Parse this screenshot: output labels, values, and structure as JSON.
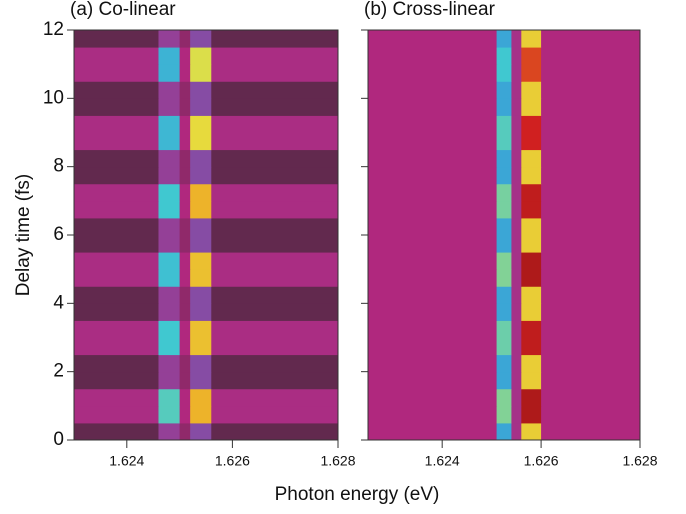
{
  "chart_data": [
    {
      "type": "heatmap",
      "title": "(a) Co-linear",
      "ylabel": "Delay time (fs)",
      "xlabel": "Photon energy (eV)",
      "xlim": [
        1.623,
        1.628
      ],
      "ylim": [
        0,
        12
      ],
      "xticks": [
        {
          "value": 1.624,
          "label": "1.624"
        },
        {
          "value": 1.626,
          "label": "1.626"
        },
        {
          "value": 1.628,
          "label": "1.628"
        }
      ],
      "yticks": [
        0,
        2,
        4,
        6,
        8,
        10,
        12
      ],
      "colorscale": [
        [
          0,
          "#2e2a2e"
        ],
        [
          0.2,
          "#b0287e"
        ],
        [
          0.4,
          "#7858b0"
        ],
        [
          0.5,
          "#3a9ed8"
        ],
        [
          0.6,
          "#40c8d0"
        ],
        [
          0.75,
          "#e6e040"
        ],
        [
          0.85,
          "#f0a020"
        ],
        [
          0.95,
          "#d02020"
        ],
        [
          1,
          "#7a1010"
        ]
      ],
      "x": [
        1.623,
        1.6246,
        1.625,
        1.6252,
        1.6256,
        1.628
      ],
      "y": [
        0,
        0.5,
        1,
        1.5,
        2,
        2.5,
        3,
        3.5,
        4,
        4.5,
        5,
        5.5,
        6,
        6.5,
        7,
        7.5,
        8,
        8.5,
        9,
        9.5,
        10,
        10.5,
        11,
        11.5,
        12
      ],
      "z": [
        [
          0.08,
          0.3,
          0.15,
          0.35,
          0.08
        ],
        [
          0.22,
          0.62,
          0.2,
          0.82,
          0.22
        ],
        [
          0.22,
          0.62,
          0.2,
          0.82,
          0.22
        ],
        [
          0.08,
          0.3,
          0.15,
          0.35,
          0.08
        ],
        [
          0.08,
          0.3,
          0.15,
          0.35,
          0.08
        ],
        [
          0.22,
          0.6,
          0.2,
          0.8,
          0.22
        ],
        [
          0.22,
          0.6,
          0.2,
          0.8,
          0.22
        ],
        [
          0.08,
          0.3,
          0.15,
          0.35,
          0.08
        ],
        [
          0.08,
          0.3,
          0.15,
          0.35,
          0.08
        ],
        [
          0.22,
          0.58,
          0.2,
          0.8,
          0.22
        ],
        [
          0.22,
          0.58,
          0.2,
          0.8,
          0.22
        ],
        [
          0.08,
          0.3,
          0.15,
          0.35,
          0.08
        ],
        [
          0.08,
          0.3,
          0.15,
          0.35,
          0.08
        ],
        [
          0.22,
          0.6,
          0.2,
          0.82,
          0.22
        ],
        [
          0.22,
          0.6,
          0.2,
          0.82,
          0.22
        ],
        [
          0.08,
          0.3,
          0.15,
          0.35,
          0.08
        ],
        [
          0.08,
          0.3,
          0.15,
          0.35,
          0.08
        ],
        [
          0.22,
          0.56,
          0.2,
          0.76,
          0.22
        ],
        [
          0.22,
          0.56,
          0.2,
          0.76,
          0.22
        ],
        [
          0.08,
          0.3,
          0.15,
          0.35,
          0.08
        ],
        [
          0.08,
          0.3,
          0.15,
          0.35,
          0.08
        ],
        [
          0.22,
          0.55,
          0.2,
          0.74,
          0.22
        ],
        [
          0.22,
          0.55,
          0.2,
          0.74,
          0.22
        ],
        [
          0.08,
          0.3,
          0.15,
          0.35,
          0.08
        ]
      ]
    },
    {
      "type": "heatmap",
      "title": "(b) Cross-linear",
      "xlim": [
        1.6225,
        1.628
      ],
      "ylim": [
        0,
        12
      ],
      "xticks": [
        {
          "value": 1.624,
          "label": "1.624"
        },
        {
          "value": 1.626,
          "label": "1.626"
        },
        {
          "value": 1.628,
          "label": "1.628"
        }
      ],
      "x": [
        1.6225,
        1.6251,
        1.6254,
        1.6256,
        1.626,
        1.628
      ],
      "y": [
        0,
        0.5,
        1,
        1.5,
        2,
        2.5,
        3,
        3.5,
        4,
        4.5,
        5,
        5.5,
        6,
        6.5,
        7,
        7.5,
        8,
        8.5,
        9,
        9.5,
        10,
        10.5,
        11,
        11.5,
        12
      ],
      "z": [
        [
          0.2,
          0.52,
          0.24,
          0.78,
          0.2
        ],
        [
          0.2,
          0.66,
          0.24,
          0.97,
          0.2
        ],
        [
          0.2,
          0.66,
          0.24,
          0.97,
          0.2
        ],
        [
          0.2,
          0.52,
          0.24,
          0.78,
          0.2
        ],
        [
          0.2,
          0.52,
          0.24,
          0.78,
          0.2
        ],
        [
          0.2,
          0.64,
          0.24,
          0.96,
          0.2
        ],
        [
          0.2,
          0.64,
          0.24,
          0.96,
          0.2
        ],
        [
          0.2,
          0.52,
          0.24,
          0.78,
          0.2
        ],
        [
          0.2,
          0.52,
          0.24,
          0.78,
          0.2
        ],
        [
          0.2,
          0.66,
          0.24,
          0.97,
          0.2
        ],
        [
          0.2,
          0.66,
          0.24,
          0.97,
          0.2
        ],
        [
          0.2,
          0.52,
          0.24,
          0.78,
          0.2
        ],
        [
          0.2,
          0.52,
          0.24,
          0.78,
          0.2
        ],
        [
          0.2,
          0.65,
          0.24,
          0.96,
          0.2
        ],
        [
          0.2,
          0.65,
          0.24,
          0.96,
          0.2
        ],
        [
          0.2,
          0.52,
          0.24,
          0.78,
          0.2
        ],
        [
          0.2,
          0.52,
          0.24,
          0.78,
          0.2
        ],
        [
          0.2,
          0.62,
          0.24,
          0.95,
          0.2
        ],
        [
          0.2,
          0.62,
          0.24,
          0.95,
          0.2
        ],
        [
          0.2,
          0.52,
          0.24,
          0.78,
          0.2
        ],
        [
          0.2,
          0.52,
          0.24,
          0.78,
          0.2
        ],
        [
          0.2,
          0.6,
          0.24,
          0.92,
          0.2
        ],
        [
          0.2,
          0.6,
          0.24,
          0.92,
          0.2
        ],
        [
          0.2,
          0.52,
          0.24,
          0.78,
          0.2
        ]
      ]
    }
  ]
}
